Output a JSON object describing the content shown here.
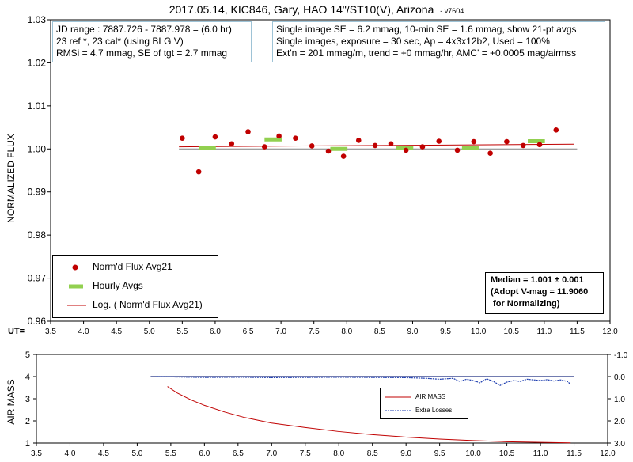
{
  "title": "2017.05.14, KIC846, Gary, HAO 14\"/ST10(V), Arizona",
  "version": "- v7604",
  "info_left": [
    "JD range : 7887.726  - 7887.978  = (6.0 hr)",
    "23 ref *, 23 cal* (using BLG V)",
    "RMSi = 4.7 mmag, SE of tgt = 2.7 mmag"
  ],
  "info_right": [
    "Single image SE = 6.2 mmag, 10-min SE = 1.6 mmag, show 21-pt avgs",
    "Single images, exposure = 30 sec, Ap = 4x3x12b2, Used = 100%",
    "Ext'n = 201 mmag/m, trend = +0 mmag/hr, AMC' = +0.0005 mag/airmss"
  ],
  "median_box": [
    "Median = 1.001 ± 0.001",
    "(Adopt V-mag = 11.9060",
    " for Normalizing)"
  ],
  "colors": {
    "flux": "#c00000",
    "hourly": "#92d050",
    "fit": "#c00000",
    "airmass": "#c00000",
    "losses": "#1f3fb0",
    "baseline": "#808080"
  },
  "chart_data": [
    {
      "type": "scatter",
      "xlabel": "UT=",
      "ylabel": "NORMALIZED FLUX",
      "xlim": [
        3.5,
        12.0
      ],
      "ylim": [
        0.96,
        1.03
      ],
      "x_ticks": [
        "3.5",
        "4.0",
        "4.5",
        "5.0",
        "5.5",
        "6.0",
        "6.5",
        "7.0",
        "7.5",
        "8.0",
        "8.5",
        "9.0",
        "9.5",
        "10.0",
        "10.5",
        "11.0",
        "11.5",
        "12.0"
      ],
      "y_ticks": [
        "0.96",
        "0.97",
        "0.98",
        "0.99",
        "1.00",
        "1.01",
        "1.02",
        "1.03"
      ],
      "legend": [
        "Norm'd Flux Avg21",
        "Hourly Avgs",
        "Log. ( Norm'd Flux Avg21)"
      ],
      "series": [
        {
          "name": "Norm'd Flux Avg21",
          "x": [
            5.5,
            5.75,
            6.0,
            6.25,
            6.5,
            6.75,
            6.97,
            7.22,
            7.47,
            7.72,
            7.95,
            8.18,
            8.43,
            8.67,
            8.9,
            9.15,
            9.4,
            9.68,
            9.93,
            10.18,
            10.43,
            10.68,
            10.93,
            11.18
          ],
          "y": [
            1.0025,
            0.9947,
            1.0028,
            1.0012,
            1.004,
            1.0005,
            1.003,
            1.0025,
            1.0007,
            0.9995,
            0.9983,
            1.002,
            1.0008,
            1.0012,
            0.9997,
            1.0005,
            1.0018,
            0.9997,
            1.0017,
            0.999,
            1.0017,
            1.0008,
            1.001,
            1.0044
          ]
        },
        {
          "name": "Hourly Avgs",
          "x": [
            5.88,
            6.88,
            7.88,
            8.88,
            9.88,
            10.88
          ],
          "y": [
            1.0002,
            1.0022,
            1.0,
            1.0003,
            1.0003,
            1.0018
          ]
        },
        {
          "name": "Log. ( Norm'd Flux Avg21)",
          "x": [
            5.45,
            11.45
          ],
          "y": [
            1.0005,
            1.0011
          ]
        }
      ],
      "baseline": 1.0
    },
    {
      "type": "line",
      "ylabel": "AIR MASS",
      "xlim": [
        3.5,
        12.0
      ],
      "ylim": [
        1,
        5
      ],
      "y2lim": [
        3.0,
        -1.0
      ],
      "x_ticks": [
        "3.5",
        "4.0",
        "4.5",
        "5.0",
        "5.5",
        "6.0",
        "6.5",
        "7.0",
        "7.5",
        "8.0",
        "8.5",
        "9.0",
        "9.5",
        "10.0",
        "10.5",
        "11.0",
        "11.5",
        "12.0"
      ],
      "y_ticks": [
        "1",
        "2",
        "3",
        "4",
        "5"
      ],
      "y2_ticks": [
        "3.0",
        "2.0",
        "1.0",
        "0.0",
        "-1.0"
      ],
      "legend": [
        "AIR MASS",
        "Extra Losses"
      ],
      "series": [
        {
          "name": "AIR MASS",
          "x": [
            5.45,
            5.6,
            5.8,
            6.0,
            6.3,
            6.6,
            7.0,
            7.5,
            8.0,
            8.5,
            9.0,
            9.5,
            10.0,
            10.5,
            11.0,
            11.45
          ],
          "y": [
            3.55,
            3.25,
            2.95,
            2.7,
            2.4,
            2.15,
            1.9,
            1.7,
            1.52,
            1.38,
            1.27,
            1.18,
            1.11,
            1.06,
            1.03,
            1.01
          ]
        },
        {
          "name": "Extra Losses",
          "x": [
            5.3,
            5.6,
            6.0,
            6.5,
            7.0,
            7.5,
            8.0,
            8.5,
            9.0,
            9.3,
            9.5,
            9.7,
            9.8,
            9.9,
            10.0,
            10.1,
            10.2,
            10.3,
            10.4,
            10.5,
            10.6,
            10.7,
            10.8,
            10.9,
            11.0,
            11.1,
            11.2,
            11.3,
            11.4,
            11.45
          ],
          "y": [
            0.0,
            0.02,
            0.04,
            0.03,
            0.05,
            0.04,
            0.03,
            0.04,
            0.05,
            0.08,
            0.12,
            0.08,
            0.22,
            0.12,
            0.18,
            0.28,
            0.1,
            0.22,
            0.4,
            0.25,
            0.18,
            0.22,
            0.12,
            0.15,
            0.18,
            0.14,
            0.2,
            0.15,
            0.22,
            0.35
          ]
        }
      ],
      "baseline_airmass": 4.0
    }
  ]
}
